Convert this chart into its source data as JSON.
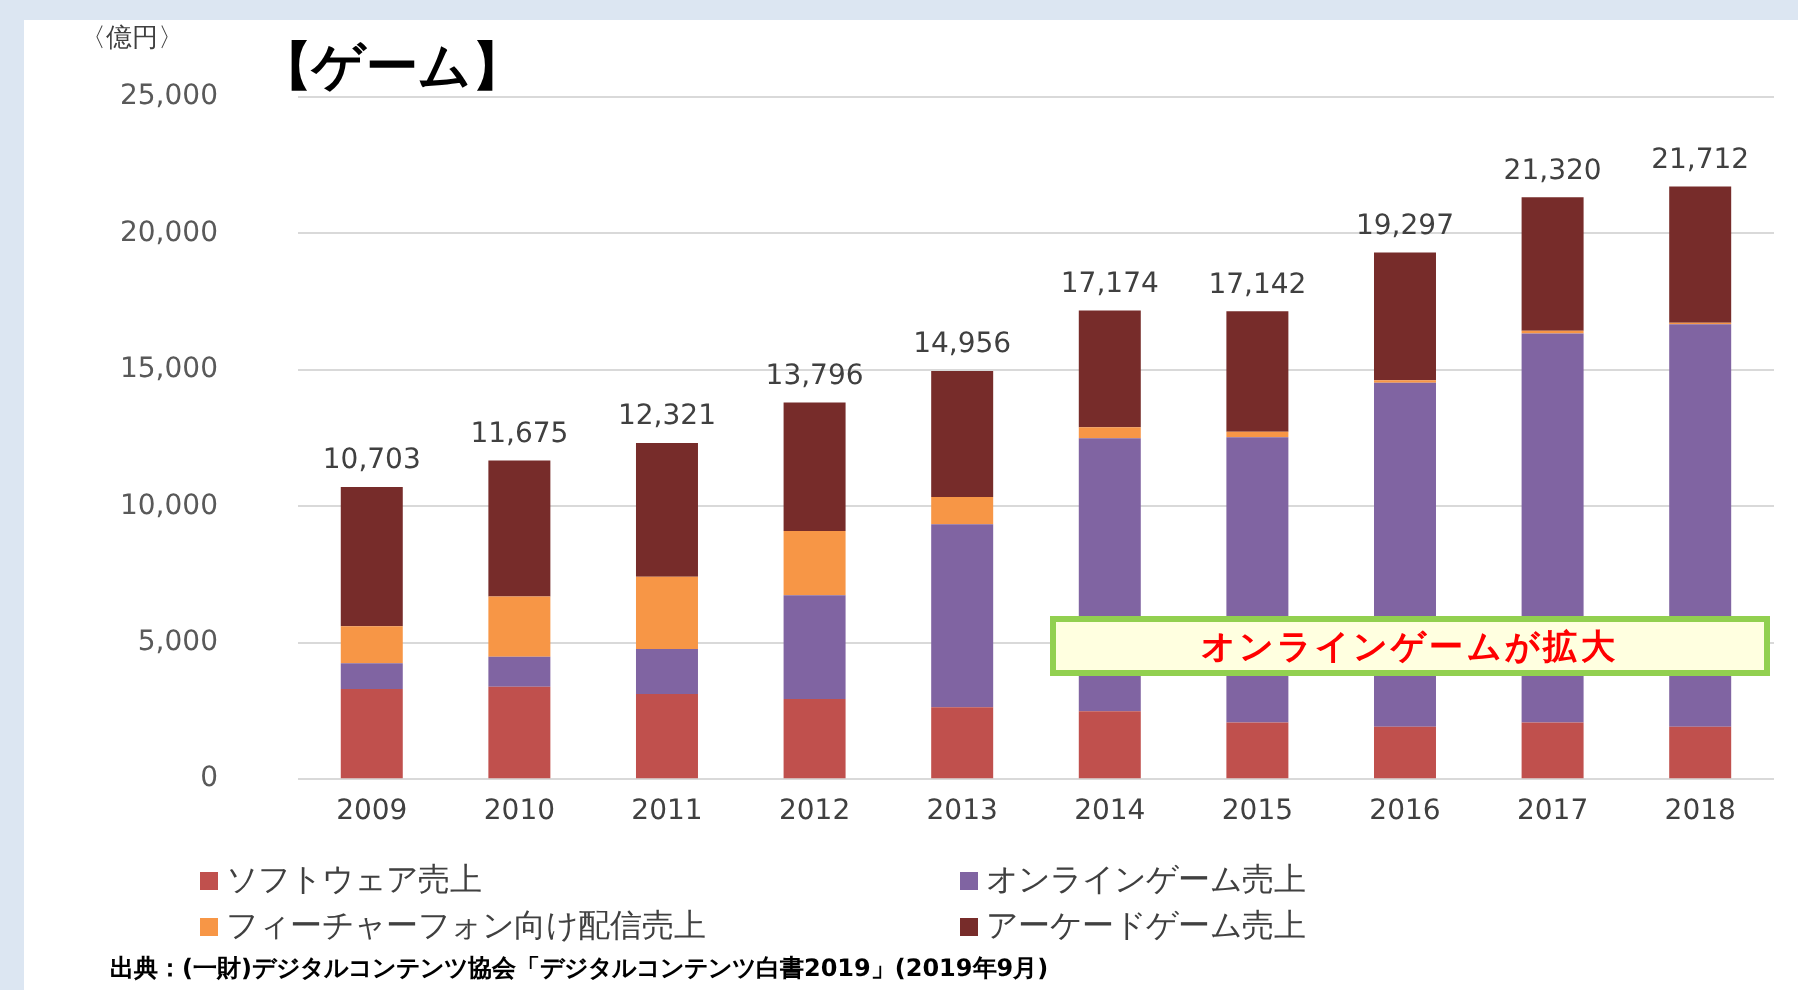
{
  "chart_data": {
    "type": "bar",
    "title": "【ゲーム】",
    "ylabel": "〈億円〉",
    "stacked": true,
    "legend": "bottom",
    "grid": "y",
    "categories": [
      "2009",
      "2010",
      "2011",
      "2012",
      "2013",
      "2014",
      "2015",
      "2016",
      "2017",
      "2018"
    ],
    "series": [
      {
        "name": "ソフトウェア売上",
        "color": "#c0504d",
        "values": [
          3300,
          3390,
          3120,
          2940,
          2640,
          2490,
          2080,
          1920,
          2080,
          1920
        ]
      },
      {
        "name": "オンラインゲーム売上",
        "color": "#8064a2",
        "values": [
          950,
          1100,
          1650,
          3800,
          6700,
          10000,
          10450,
          12600,
          14250,
          14750
        ]
      },
      {
        "name": "フィーチャーフォン向け配信売上",
        "color": "#f79646",
        "values": [
          1350,
          2200,
          2650,
          2350,
          1000,
          400,
          200,
          100,
          100,
          50
        ]
      },
      {
        "name": "アーケードゲーム売上",
        "color": "#772c2a",
        "values": [
          5103,
          4985,
          4901,
          4706,
          4616,
          4284,
          4412,
          4677,
          4890,
          4992
        ]
      }
    ],
    "totals": [
      "10,703",
      "11,675",
      "12,321",
      "13,796",
      "14,956",
      "17,174",
      "17,142",
      "19,297",
      "21,320",
      "21,712"
    ],
    "ylim": [
      0,
      25000
    ],
    "yticks": [
      0,
      {
        "value": 5000,
        "label": "5,000"
      },
      {
        "value": 10000,
        "label": "10,000"
      },
      {
        "value": 15000,
        "label": "15,000"
      },
      {
        "value": 20000,
        "label": "20,000"
      },
      {
        "value": 25000,
        "label": "25,000"
      }
    ],
    "annotations": [
      "オンラインゲームが拡大",
      "出典：(一財)デジタルコンテンツ協会「デジタルコンテンツ白書2019」(2019年9月)"
    ]
  }
}
